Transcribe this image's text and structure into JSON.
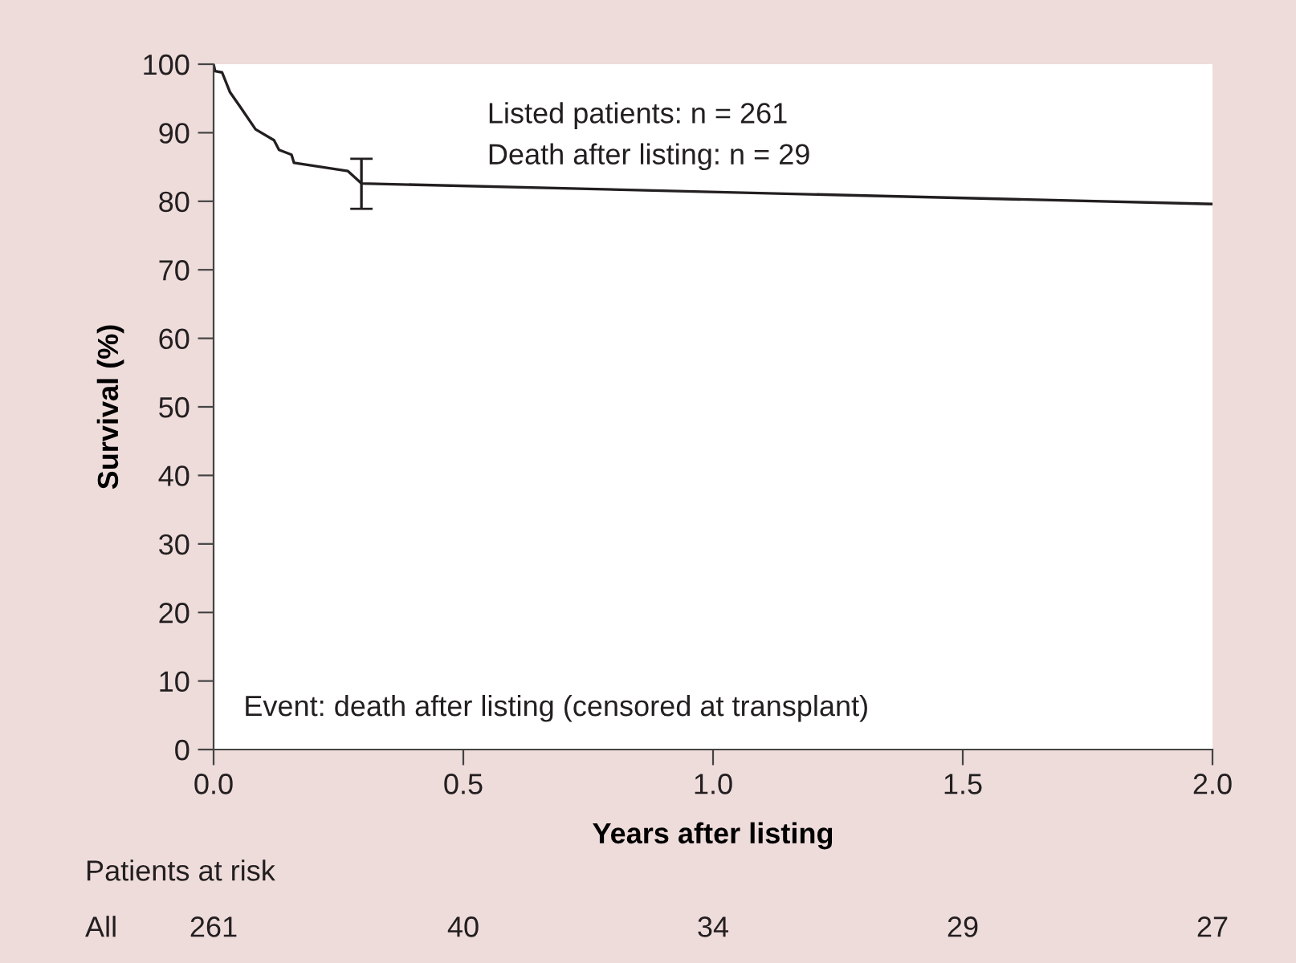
{
  "chart_data": {
    "type": "step",
    "xlabel": "Years after listing",
    "ylabel": "Survival (%)",
    "x": [
      0,
      0.003,
      0.017,
      0.033,
      0.054,
      0.084,
      0.121,
      0.131,
      0.156,
      0.161,
      0.269,
      0.296,
      2.0
    ],
    "series": [
      {
        "color": "#231f20",
        "values": [
          100,
          99.0,
          98.8,
          95.9,
          93.7,
          90.5,
          88.9,
          87.5,
          86.8,
          85.6,
          84.4,
          82.6,
          79.6
        ],
        "errors": [
          null,
          null,
          null,
          null,
          null,
          null,
          null,
          null,
          null,
          null,
          null,
          [
            78.9,
            86.2
          ],
          null
        ]
      }
    ],
    "xlim": [
      0,
      2.0
    ],
    "xticks": [
      {
        "value": 0,
        "label": "0.0"
      },
      0.5,
      {
        "value": 1,
        "label": "1.0"
      },
      1.5,
      {
        "value": 2,
        "label": "2.0"
      }
    ],
    "ylim": [
      0,
      100
    ],
    "yticks": [
      0,
      10,
      20,
      30,
      40,
      50,
      60,
      70,
      80,
      90,
      100
    ],
    "grid": false,
    "marker": "none",
    "line_style": "solid",
    "annotations": [
      "Listed patients: n = 261",
      "Death after listing: n = 29",
      "Event: death after listing (censored at transplant)",
      "Patients at risk",
      "All",
      "261",
      "40",
      "34",
      "29",
      "27"
    ]
  }
}
